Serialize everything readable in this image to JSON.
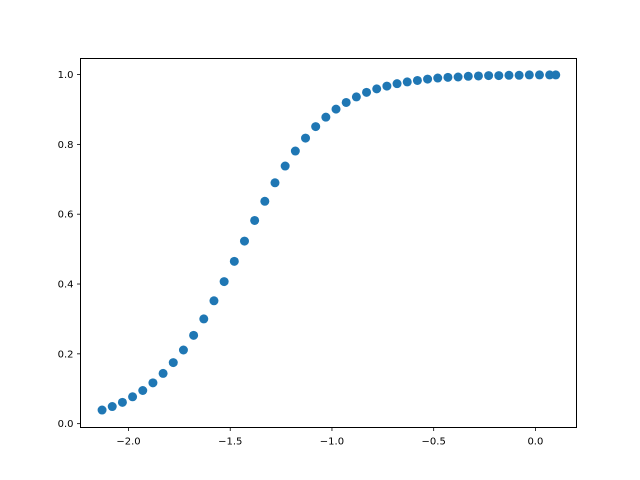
{
  "chart_data": {
    "type": "scatter",
    "title": "",
    "xlabel": "",
    "ylabel": "",
    "xlim": [
      -2.236,
      0.202
    ],
    "ylim": [
      -0.011,
      1.046
    ],
    "grid": false,
    "marker_color": "#1f77b4",
    "x_ticks": [
      {
        "value": -2.0,
        "label": "−2.0"
      },
      {
        "value": -1.5,
        "label": "−1.5"
      },
      {
        "value": -1.0,
        "label": "−1.0"
      },
      {
        "value": -0.5,
        "label": "−0.5"
      },
      {
        "value": 0.0,
        "label": "0.0"
      }
    ],
    "y_ticks": [
      {
        "value": 0.0,
        "label": "0.0"
      },
      {
        "value": 0.2,
        "label": "0.2"
      },
      {
        "value": 0.4,
        "label": "0.4"
      },
      {
        "value": 0.6,
        "label": "0.6"
      },
      {
        "value": 0.8,
        "label": "0.8"
      },
      {
        "value": 1.0,
        "label": "1.0"
      }
    ],
    "x": [
      -2.13,
      -2.08,
      -2.03,
      -1.98,
      -1.93,
      -1.88,
      -1.83,
      -1.78,
      -1.73,
      -1.68,
      -1.63,
      -1.58,
      -1.53,
      -1.48,
      -1.43,
      -1.38,
      -1.33,
      -1.28,
      -1.23,
      -1.18,
      -1.13,
      -1.08,
      -1.03,
      -0.98,
      -0.93,
      -0.88,
      -0.83,
      -0.78,
      -0.73,
      -0.68,
      -0.63,
      -0.58,
      -0.53,
      -0.48,
      -0.43,
      -0.38,
      -0.33,
      -0.28,
      -0.23,
      -0.18,
      -0.13,
      -0.08,
      -0.03,
      0.02,
      0.07,
      0.1
    ],
    "y": [
      0.039,
      0.049,
      0.061,
      0.077,
      0.095,
      0.117,
      0.144,
      0.175,
      0.211,
      0.253,
      0.3,
      0.352,
      0.407,
      0.465,
      0.523,
      0.582,
      0.637,
      0.69,
      0.738,
      0.781,
      0.818,
      0.851,
      0.878,
      0.901,
      0.92,
      0.936,
      0.949,
      0.959,
      0.967,
      0.974,
      0.979,
      0.983,
      0.987,
      0.99,
      0.992,
      0.993,
      0.995,
      0.996,
      0.997,
      0.997,
      0.998,
      0.998,
      0.999,
      0.999,
      0.999,
      0.999
    ]
  }
}
